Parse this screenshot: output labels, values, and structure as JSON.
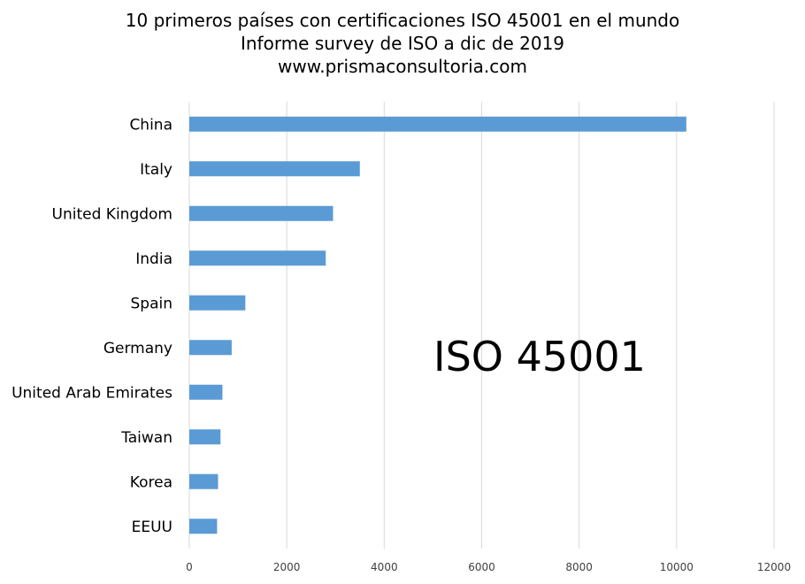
{
  "chart_data": {
    "type": "bar",
    "orientation": "horizontal",
    "title": "10 primeros países con certificaciones ISO 45001 en el mundo",
    "subtitle": "Informe survey de ISO a dic de 2019",
    "source": "www.prismaconsultoria.com",
    "categories": [
      "China",
      "Italy",
      "United Kingdom",
      "India",
      "Spain",
      "Germany",
      "United Arab Emirates",
      "Taiwan",
      "Korea",
      "EEUU"
    ],
    "values": [
      10200,
      3500,
      2950,
      2800,
      1150,
      870,
      680,
      640,
      590,
      570
    ],
    "xlim": [
      0,
      12000
    ],
    "xticks": [
      "0",
      "2000",
      "4000",
      "6000",
      "8000",
      "10000",
      "12000"
    ],
    "xlabel": "",
    "ylabel": "",
    "grid": "vertical",
    "bar_color": "#5b9bd5",
    "annotation": "ISO 45001"
  }
}
